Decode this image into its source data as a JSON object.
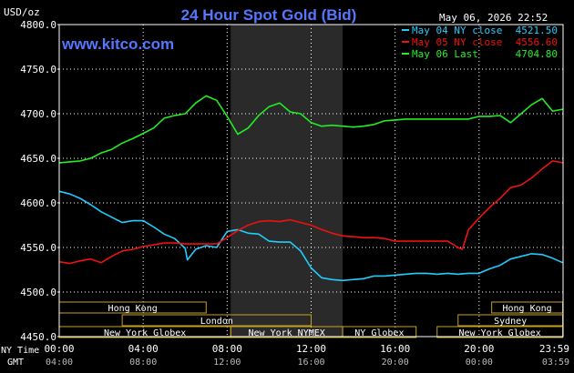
{
  "chart_data": {
    "type": "line",
    "title": "24 Hour Spot Gold (Bid)",
    "watermark": "www.kitco.com",
    "timestamp": "May 06, 2026 22:52",
    "y_unit": "USD/oz",
    "ylim": [
      4450,
      4800
    ],
    "y_ticks": [
      "4800.0",
      "4750.0",
      "4700.0",
      "4650.0",
      "4600.0",
      "4550.0",
      "4500.0",
      "4450.0"
    ],
    "y_tick_values": [
      4800,
      4750,
      4700,
      4650,
      4600,
      4550,
      4500,
      4450
    ],
    "xlim": [
      0,
      24
    ],
    "x_ticks_ny": [
      "00:00",
      "04:00",
      "08:00",
      "12:00",
      "16:00",
      "20:00",
      "23:59"
    ],
    "x_ticks_gmt": [
      "04:00",
      "08:00",
      "12:00",
      "16:00",
      "20:00",
      "00:00",
      "03:59"
    ],
    "x_tick_hours": [
      0,
      4,
      8,
      12,
      16,
      20,
      23.98
    ],
    "ny_time_label": "NY Time",
    "gmt_label": "GMT",
    "grid": true,
    "legend_position": "top-right",
    "shaded_band_hours": [
      8.17,
      13.5
    ],
    "colors": {
      "background": "#000000",
      "shade": "#2a2a2a",
      "grid": "#ffffff",
      "text": "#ffffff",
      "title": "#5577ff",
      "watermark": "#5577ff"
    },
    "series": [
      {
        "name": "May 04 NY close",
        "last_label": "4521.50",
        "color": "#22ccff",
        "x": [
          0,
          0.5,
          1,
          1.5,
          2,
          2.5,
          3,
          3.5,
          4,
          4.5,
          5,
          5.5,
          6,
          6.1,
          6.5,
          7,
          7.5,
          8,
          8.5,
          9,
          9.5,
          10,
          10.5,
          11,
          11.5,
          12,
          12.5,
          13,
          13.5,
          14,
          14.5,
          15,
          15.5,
          16,
          16.5,
          17,
          17.5,
          18,
          18.5,
          19,
          19.5,
          20,
          20.5,
          21,
          21.5,
          22,
          22.5,
          23,
          23.5,
          23.98
        ],
        "values": [
          4613,
          4610,
          4605,
          4598,
          4590,
          4584,
          4578,
          4580,
          4580,
          4573,
          4565,
          4560,
          4549,
          4536,
          4548,
          4552,
          4550,
          4568,
          4570,
          4566,
          4565,
          4557,
          4556,
          4556,
          4546,
          4527,
          4516,
          4514,
          4513,
          4514,
          4515,
          4518,
          4518,
          4519,
          4520,
          4521,
          4521,
          4520,
          4521,
          4520,
          4521,
          4521,
          4526,
          4530,
          4537,
          4540,
          4543,
          4542,
          4538,
          4533
        ]
      },
      {
        "name": "May 05 NY close",
        "last_label": "4556.60",
        "color": "#ee1111",
        "x": [
          0,
          0.5,
          1,
          1.5,
          2,
          2.5,
          3,
          3.5,
          4,
          4.5,
          5,
          5.5,
          6,
          6.5,
          7,
          7.5,
          8,
          8.5,
          9,
          9.5,
          10,
          10.5,
          11,
          11.5,
          12,
          12.5,
          13,
          13.5,
          14,
          14.5,
          15,
          15.5,
          16,
          16.5,
          17,
          17.5,
          18,
          18.5,
          19,
          19.2,
          19.5,
          20,
          20.5,
          21,
          21.5,
          22,
          22.5,
          23,
          23.5,
          23.98
        ],
        "values": [
          4534,
          4532,
          4535,
          4537,
          4533,
          4540,
          4546,
          4548,
          4551,
          4553,
          4555,
          4555,
          4554,
          4554,
          4554,
          4554,
          4561,
          4569,
          4575,
          4579,
          4580,
          4579,
          4581,
          4578,
          4575,
          4570,
          4566,
          4563,
          4562,
          4561,
          4561,
          4560,
          4557,
          4557,
          4557,
          4557,
          4557,
          4557,
          4550,
          4548,
          4570,
          4583,
          4595,
          4605,
          4617,
          4620,
          4628,
          4638,
          4647,
          4645
        ]
      },
      {
        "name": "May 06 Last",
        "last_label": "4704.80",
        "color": "#22ee22",
        "x": [
          0,
          0.5,
          1,
          1.5,
          2,
          2.5,
          3,
          3.5,
          4,
          4.5,
          5,
          5.5,
          6,
          6.5,
          7,
          7.5,
          8,
          8.5,
          9,
          9.5,
          10,
          10.5,
          11,
          11.5,
          12,
          12.5,
          13,
          13.5,
          14,
          14.5,
          15,
          15.5,
          16,
          16.5,
          17,
          17.5,
          18,
          18.5,
          19,
          19.5,
          20,
          20.5,
          21,
          21.5,
          22,
          22.5,
          23,
          23.5,
          23.98
        ],
        "values": [
          4645,
          4646,
          4647,
          4650,
          4656,
          4660,
          4667,
          4672,
          4678,
          4684,
          4695,
          4698,
          4700,
          4712,
          4720,
          4715,
          4697,
          4677,
          4684,
          4698,
          4708,
          4712,
          4702,
          4700,
          4690,
          4686,
          4687,
          4686,
          4685,
          4686,
          4688,
          4692,
          4693,
          4694,
          4694,
          4694,
          4694,
          4694,
          4694,
          4694,
          4697,
          4697,
          4698,
          4690,
          4700,
          4710,
          4717,
          4703,
          4705
        ]
      }
    ],
    "session_rows": [
      [
        {
          "label": "Hong Kong",
          "start": 0,
          "end": 7.0
        },
        {
          "label": "Hong Kong",
          "start": 20.6,
          "end": 23.98
        }
      ],
      [
        {
          "label": "London",
          "start": 3.0,
          "end": 12.0
        },
        {
          "label": "Sydney",
          "start": 19.0,
          "end": 23.98
        }
      ],
      [
        {
          "label": "New York Globex",
          "start": 0,
          "end": 8.17
        },
        {
          "label": "New York NYMEX",
          "start": 8.17,
          "end": 13.5
        },
        {
          "label": "NY Globex",
          "start": 13.5,
          "end": 17.0
        },
        {
          "label": "New York Globex",
          "start": 18.0,
          "end": 23.98
        }
      ]
    ]
  }
}
